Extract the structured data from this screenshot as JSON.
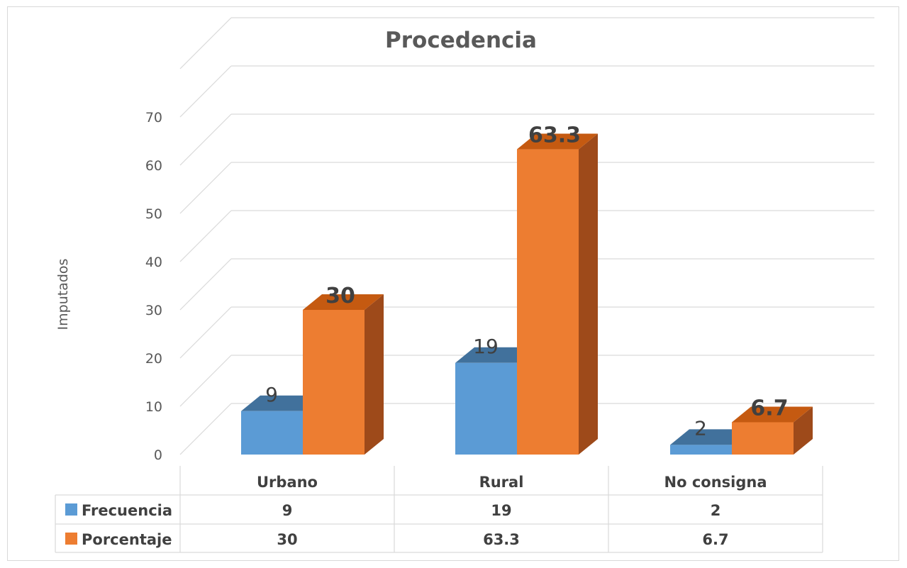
{
  "colors": {
    "frecuencia": "#5b9bd5",
    "frecuencia_top": "#41719c",
    "porcentaje": "#ed7d31",
    "porcentaje_top": "#c55a11",
    "porcentaje_side": "#9e4a1a",
    "grid": "#d9d9d9",
    "text": "#595959"
  },
  "chart_data": {
    "type": "bar",
    "title": "Procedencia",
    "ylabel": "Imputados",
    "xlabel": "",
    "categories": [
      "Urbano",
      "Rural",
      "No consigna"
    ],
    "series": [
      {
        "name": "Frecuencia",
        "values": [
          9,
          19,
          2
        ],
        "labels": [
          "9",
          "19",
          "2"
        ]
      },
      {
        "name": "Porcentaje",
        "values": [
          30,
          63.3,
          6.7
        ],
        "labels": [
          "30",
          "63.3",
          "6.7"
        ]
      }
    ],
    "ylim": [
      0,
      70
    ],
    "yticks": [
      "0",
      "10",
      "20",
      "30",
      "40",
      "50",
      "60",
      "70"
    ],
    "grid": true,
    "legend": "data-table",
    "data_table": {
      "rows": [
        {
          "name": "Frecuencia",
          "cells": [
            "9",
            "19",
            "2"
          ]
        },
        {
          "name": "Porcentaje",
          "cells": [
            "30",
            "63.3",
            "6.7"
          ]
        }
      ]
    }
  }
}
